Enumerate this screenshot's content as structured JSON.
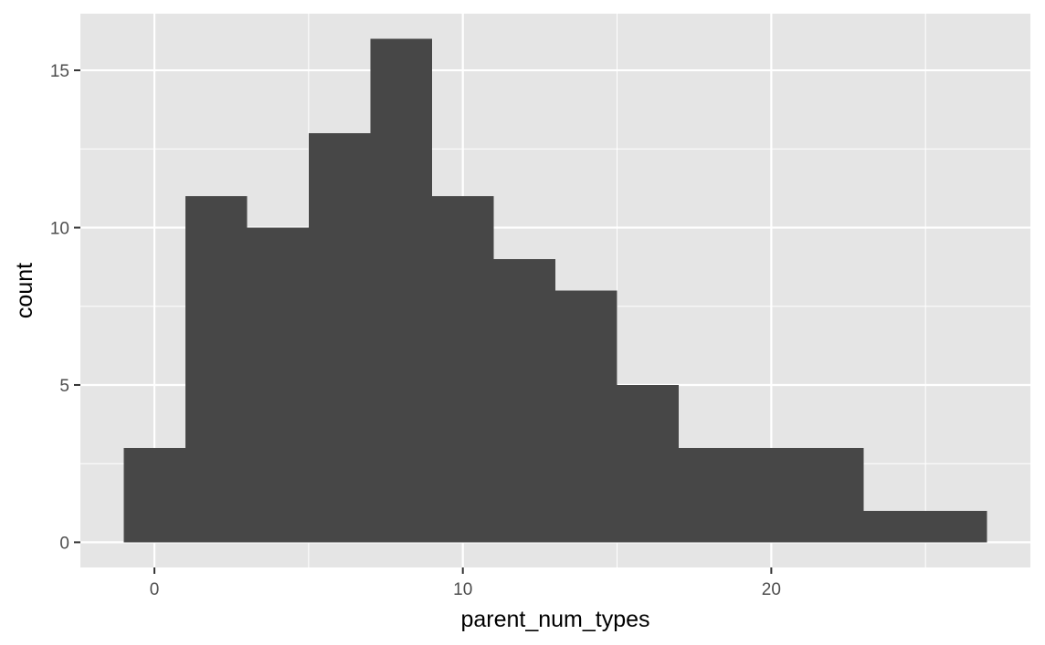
{
  "chart_data": {
    "type": "bar",
    "subtype": "histogram",
    "title": "",
    "xlabel": "parent_num_types",
    "ylabel": "count",
    "bin_width": 2,
    "bins": [
      {
        "x0": -1,
        "x1": 1,
        "count": 3
      },
      {
        "x0": 1,
        "x1": 3,
        "count": 11
      },
      {
        "x0": 3,
        "x1": 5,
        "count": 10
      },
      {
        "x0": 5,
        "x1": 7,
        "count": 13
      },
      {
        "x0": 7,
        "x1": 9,
        "count": 16
      },
      {
        "x0": 9,
        "x1": 11,
        "count": 11
      },
      {
        "x0": 11,
        "x1": 13,
        "count": 9
      },
      {
        "x0": 13,
        "x1": 15,
        "count": 8
      },
      {
        "x0": 15,
        "x1": 17,
        "count": 5
      },
      {
        "x0": 17,
        "x1": 19,
        "count": 3
      },
      {
        "x0": 19,
        "x1": 21,
        "count": 3
      },
      {
        "x0": 21,
        "x1": 23,
        "count": 3
      },
      {
        "x0": 23,
        "x1": 25,
        "count": 1
      },
      {
        "x0": 25,
        "x1": 27,
        "count": 1
      }
    ],
    "xlim": [
      -2.4,
      28.4
    ],
    "ylim": [
      -0.8,
      16.8
    ],
    "x_ticks": [
      0,
      10,
      20
    ],
    "x_tick_labels": [
      "0",
      "10",
      "20"
    ],
    "x_minor_ticks": [
      5,
      15,
      25
    ],
    "y_ticks": [
      0,
      5,
      10,
      15
    ],
    "y_tick_labels": [
      "0",
      "5",
      "10",
      "15"
    ],
    "y_minor_ticks": [
      2.5,
      7.5,
      12.5
    ],
    "grid": true,
    "legend": "none",
    "colors": {
      "bar_fill": "#474747",
      "panel_background": "#e5e5e5",
      "grid_line": "#ffffff",
      "tick_text": "#4d4d4d",
      "axis_text": "#000000",
      "tick_mark": "#333333"
    }
  }
}
